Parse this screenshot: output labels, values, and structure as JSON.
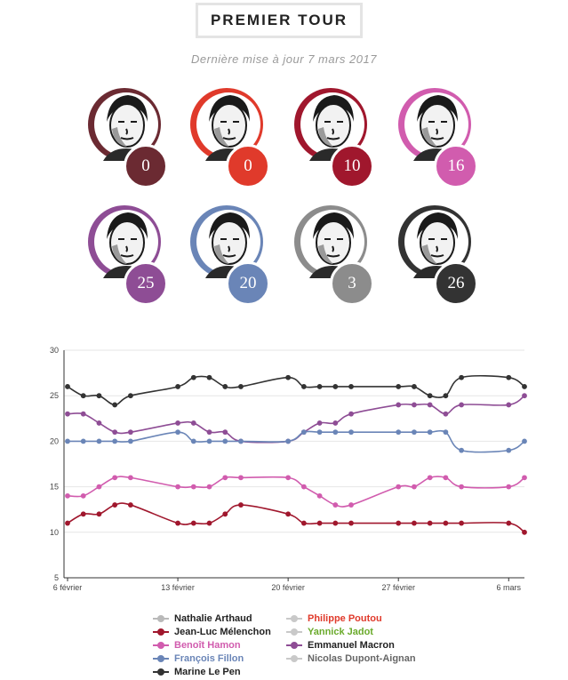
{
  "header": {
    "title": "PREMIER TOUR",
    "updated": "Dernière mise à jour 7 mars 2017"
  },
  "candidates": [
    {
      "icon": "candidate-portrait-1",
      "value": "0",
      "color": "#6b2a32",
      "face_ring": "#6b2a32"
    },
    {
      "icon": "candidate-portrait-2",
      "value": "0",
      "color": "#e03a2b",
      "face_ring": "#e03a2b"
    },
    {
      "icon": "candidate-portrait-3",
      "value": "10",
      "color": "#a0172d",
      "face_ring": "#a0172d"
    },
    {
      "icon": "candidate-portrait-4",
      "value": "16",
      "color": "#d15cae",
      "face_ring": "#d15cae"
    },
    {
      "icon": "candidate-portrait-5",
      "value": "25",
      "color": "#8e4d95",
      "face_ring": "#8e4d95"
    },
    {
      "icon": "candidate-portrait-6",
      "value": "20",
      "color": "#6a85b7",
      "face_ring": "#6a85b7"
    },
    {
      "icon": "candidate-portrait-7",
      "value": "3",
      "color": "#8c8c8c",
      "face_ring": "#8c8c8c"
    },
    {
      "icon": "candidate-portrait-8",
      "value": "26",
      "color": "#333333",
      "face_ring": "#333333"
    }
  ],
  "legend": [
    {
      "name": "Nathalie Arthaud",
      "color": "#b9b9b9",
      "text_color": "#222222"
    },
    {
      "name": "Philippe Poutou",
      "color": "#c9c9c9",
      "text_color": "#e03a2b"
    },
    {
      "name": "Jean-Luc Mélenchon",
      "color": "#a0172d",
      "text_color": "#222222"
    },
    {
      "name": "Yannick Jadot",
      "color": "#c9c9c9",
      "text_color": "#6aaa2b"
    },
    {
      "name": "Benoît Hamon",
      "color": "#d15cae",
      "text_color": "#d15cae"
    },
    {
      "name": "Emmanuel Macron",
      "color": "#8e4d95",
      "text_color": "#222222"
    },
    {
      "name": "François Fillon",
      "color": "#6a85b7",
      "text_color": "#6a85b7"
    },
    {
      "name": "Nicolas Dupont-Aignan",
      "color": "#c9c9c9",
      "text_color": "#666666"
    },
    {
      "name": "Marine Le Pen",
      "color": "#333333",
      "text_color": "#222222"
    }
  ],
  "chart_data": {
    "type": "line",
    "ylim": [
      5,
      30
    ],
    "yticks": [
      5,
      10,
      15,
      20,
      25,
      30
    ],
    "xlim": [
      0,
      29
    ],
    "xticks": [
      {
        "day": 0,
        "label": "6 février"
      },
      {
        "day": 7,
        "label": "13 février"
      },
      {
        "day": 14,
        "label": "20 février"
      },
      {
        "day": 21,
        "label": "27 février"
      },
      {
        "day": 28,
        "label": "6 mars"
      }
    ],
    "grid": true,
    "series": [
      {
        "name": "Marine Le Pen",
        "color": "#333333",
        "points": [
          [
            0,
            26
          ],
          [
            1,
            25
          ],
          [
            2,
            25
          ],
          [
            3,
            24
          ],
          [
            4,
            25
          ],
          [
            7,
            26
          ],
          [
            8,
            27
          ],
          [
            9,
            27
          ],
          [
            10,
            26
          ],
          [
            11,
            26
          ],
          [
            14,
            27
          ],
          [
            15,
            26
          ],
          [
            16,
            26
          ],
          [
            17,
            26
          ],
          [
            18,
            26
          ],
          [
            21,
            26
          ],
          [
            22,
            26
          ],
          [
            23,
            25
          ],
          [
            24,
            25
          ],
          [
            25,
            27
          ],
          [
            28,
            27
          ],
          [
            29,
            26
          ]
        ]
      },
      {
        "name": "Emmanuel Macron",
        "color": "#8e4d95",
        "points": [
          [
            0,
            23
          ],
          [
            1,
            23
          ],
          [
            2,
            22
          ],
          [
            3,
            21
          ],
          [
            4,
            21
          ],
          [
            7,
            22
          ],
          [
            8,
            22
          ],
          [
            9,
            21
          ],
          [
            10,
            21
          ],
          [
            11,
            20
          ],
          [
            14,
            20
          ],
          [
            15,
            21
          ],
          [
            16,
            22
          ],
          [
            17,
            22
          ],
          [
            18,
            23
          ],
          [
            21,
            24
          ],
          [
            22,
            24
          ],
          [
            23,
            24
          ],
          [
            24,
            23
          ],
          [
            25,
            24
          ],
          [
            28,
            24
          ],
          [
            29,
            25
          ]
        ]
      },
      {
        "name": "François Fillon",
        "color": "#6a85b7",
        "points": [
          [
            0,
            20
          ],
          [
            1,
            20
          ],
          [
            2,
            20
          ],
          [
            3,
            20
          ],
          [
            4,
            20
          ],
          [
            7,
            21
          ],
          [
            8,
            20
          ],
          [
            9,
            20
          ],
          [
            10,
            20
          ],
          [
            11,
            20
          ],
          [
            14,
            20
          ],
          [
            15,
            21
          ],
          [
            16,
            21
          ],
          [
            17,
            21
          ],
          [
            18,
            21
          ],
          [
            21,
            21
          ],
          [
            22,
            21
          ],
          [
            23,
            21
          ],
          [
            24,
            21
          ],
          [
            25,
            19
          ],
          [
            28,
            19
          ],
          [
            29,
            20
          ]
        ]
      },
      {
        "name": "Benoît Hamon",
        "color": "#d15cae",
        "points": [
          [
            0,
            14
          ],
          [
            1,
            14
          ],
          [
            2,
            15
          ],
          [
            3,
            16
          ],
          [
            4,
            16
          ],
          [
            7,
            15
          ],
          [
            8,
            15
          ],
          [
            9,
            15
          ],
          [
            10,
            16
          ],
          [
            11,
            16
          ],
          [
            14,
            16
          ],
          [
            15,
            15
          ],
          [
            16,
            14
          ],
          [
            17,
            13
          ],
          [
            18,
            13
          ],
          [
            21,
            15
          ],
          [
            22,
            15
          ],
          [
            23,
            16
          ],
          [
            24,
            16
          ],
          [
            25,
            15
          ],
          [
            28,
            15
          ],
          [
            29,
            16
          ]
        ]
      },
      {
        "name": "Jean-Luc Mélenchon",
        "color": "#a0172d",
        "points": [
          [
            0,
            11
          ],
          [
            1,
            12
          ],
          [
            2,
            12
          ],
          [
            3,
            13
          ],
          [
            4,
            13
          ],
          [
            7,
            11
          ],
          [
            8,
            11
          ],
          [
            9,
            11
          ],
          [
            10,
            12
          ],
          [
            11,
            13
          ],
          [
            14,
            12
          ],
          [
            15,
            11
          ],
          [
            16,
            11
          ],
          [
            17,
            11
          ],
          [
            18,
            11
          ],
          [
            21,
            11
          ],
          [
            22,
            11
          ],
          [
            23,
            11
          ],
          [
            24,
            11
          ],
          [
            25,
            11
          ],
          [
            28,
            11
          ],
          [
            29,
            10
          ]
        ]
      }
    ]
  }
}
